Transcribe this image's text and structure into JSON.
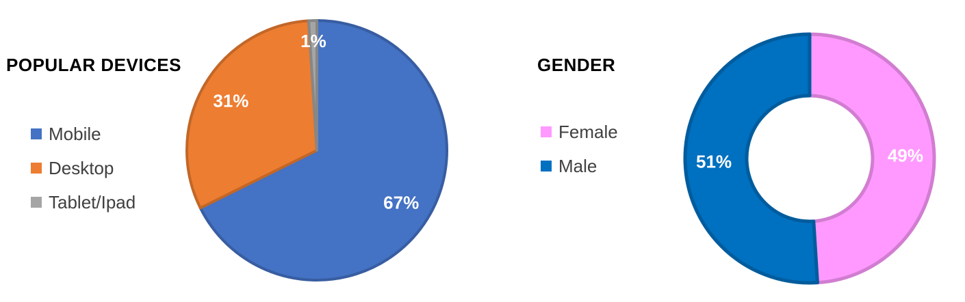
{
  "chart_data": [
    {
      "type": "pie",
      "title": "POPULAR DEVICES",
      "categories": [
        "Mobile",
        "Desktop",
        "Tablet/Ipad"
      ],
      "values": [
        67,
        31,
        1
      ],
      "labels": [
        "67%",
        "31%",
        "1%"
      ],
      "colors": [
        "#4472C4",
        "#ED7D31",
        "#A5A5A5"
      ],
      "legend_position": "left"
    },
    {
      "type": "pie",
      "subtype": "doughnut",
      "title": "GENDER",
      "categories": [
        "Female",
        "Male"
      ],
      "values": [
        49,
        51
      ],
      "labels": [
        "49%",
        "51%"
      ],
      "colors": [
        "#FF99FF",
        "#0070C0"
      ],
      "legend_position": "left"
    }
  ]
}
